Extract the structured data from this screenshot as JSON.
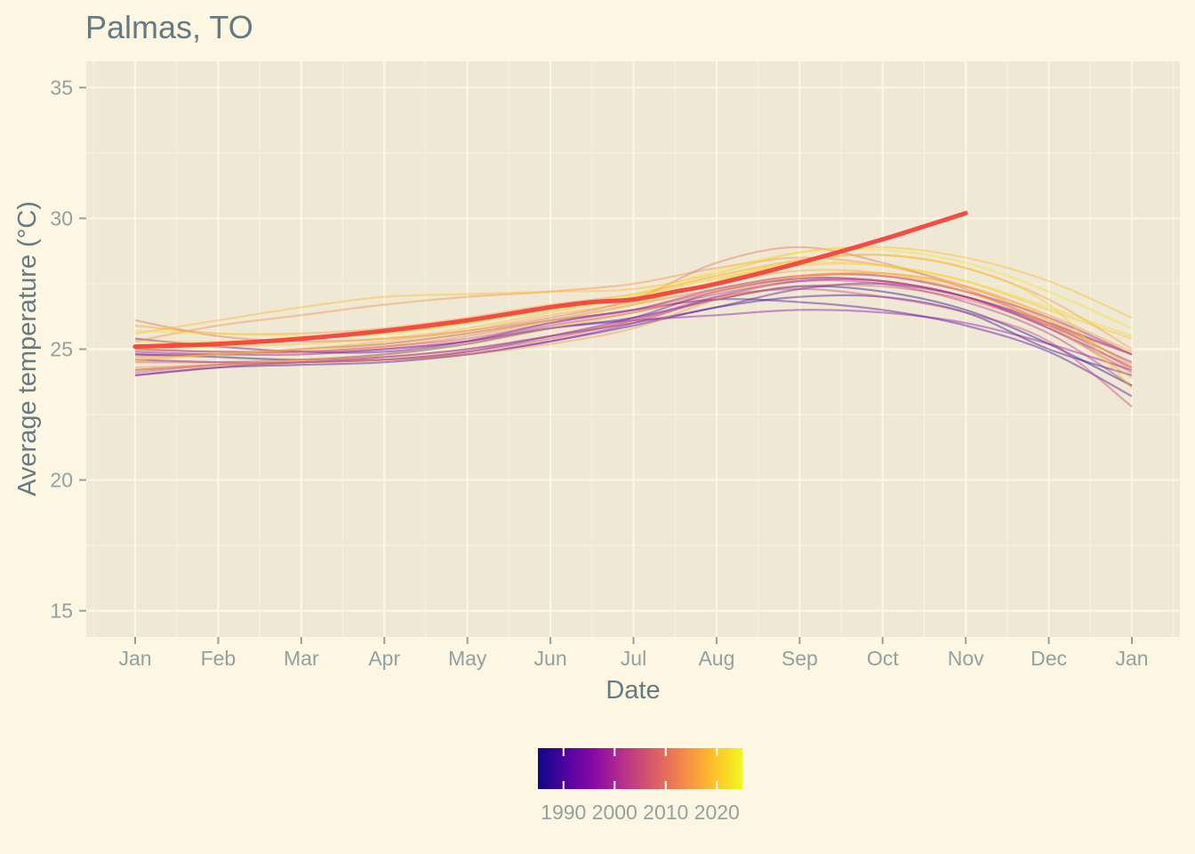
{
  "chart_data": {
    "type": "line",
    "title": "Palmas, TO",
    "xlabel": "Date",
    "ylabel": "Average temperature (°C)",
    "ylim": [
      14,
      36
    ],
    "yticks": [
      15,
      20,
      25,
      30,
      35
    ],
    "x_tick_labels": [
      "Jan",
      "Feb",
      "Mar",
      "Apr",
      "May",
      "Jun",
      "Jul",
      "Aug",
      "Sep",
      "Oct",
      "Nov",
      "Dec",
      "Jan"
    ],
    "grid": true,
    "legend": {
      "position": "bottom",
      "type": "colorbar",
      "colormap": "plasma",
      "range": [
        1985,
        2025
      ],
      "tick_labels": [
        "1990",
        "2000",
        "2010",
        "2020"
      ],
      "tick_values": [
        1990,
        2000,
        2010,
        2020
      ]
    },
    "colors": {
      "background": "#fdf6e3",
      "panel": "#eee8d5",
      "grid": "#fdf6e3",
      "highlight": "#f5423b"
    },
    "highlight_series": {
      "year": 2024,
      "color": "#f5423b",
      "x_months": [
        0,
        1,
        2,
        3,
        4,
        5,
        5.5,
        6,
        6.5,
        7,
        8,
        9,
        10
      ],
      "values": [
        25.1,
        25.2,
        25.4,
        25.7,
        26.1,
        26.6,
        26.8,
        26.9,
        27.2,
        27.5,
        28.3,
        29.2,
        30.2
      ]
    },
    "series": [
      {
        "year": 1986,
        "values": [
          24.8,
          24.7,
          24.6,
          24.8,
          25.2,
          25.8,
          26.2,
          26.9,
          27.4,
          27.2,
          26.5,
          25.2,
          23.6
        ]
      },
      {
        "year": 1988,
        "values": [
          24.0,
          24.3,
          24.4,
          24.5,
          24.8,
          25.3,
          25.9,
          26.6,
          27.0,
          27.0,
          26.4,
          25.0,
          24.0
        ]
      },
      {
        "year": 1990,
        "values": [
          25.4,
          25.1,
          24.9,
          24.9,
          25.3,
          26.0,
          26.5,
          26.9,
          26.8,
          26.5,
          25.9,
          24.9,
          23.2
        ]
      },
      {
        "year": 1992,
        "values": [
          24.6,
          24.5,
          24.5,
          24.7,
          25.0,
          25.5,
          26.0,
          26.6,
          27.3,
          27.5,
          27.0,
          26.0,
          24.8
        ]
      },
      {
        "year": 1994,
        "values": [
          24.2,
          24.4,
          24.5,
          24.6,
          24.9,
          25.5,
          26.2,
          27.2,
          27.7,
          27.6,
          27.0,
          25.8,
          24.3
        ]
      },
      {
        "year": 1996,
        "values": [
          24.9,
          24.8,
          24.8,
          25.0,
          25.3,
          25.8,
          26.1,
          26.3,
          26.5,
          26.4,
          26.0,
          25.2,
          24.2
        ]
      },
      {
        "year": 1998,
        "values": [
          24.8,
          24.8,
          25.0,
          25.2,
          25.6,
          26.1,
          26.5,
          27.3,
          27.8,
          27.8,
          27.2,
          26.2,
          24.8
        ]
      },
      {
        "year": 2000,
        "values": [
          24.0,
          24.3,
          24.5,
          24.6,
          24.8,
          25.3,
          26.0,
          27.0,
          27.6,
          27.6,
          27.0,
          25.9,
          24.5
        ]
      },
      {
        "year": 2002,
        "values": [
          25.0,
          24.9,
          24.9,
          25.0,
          25.3,
          25.9,
          26.4,
          27.1,
          27.6,
          27.5,
          26.8,
          25.6,
          23.6
        ]
      },
      {
        "year": 2004,
        "values": [
          24.1,
          24.4,
          24.5,
          24.6,
          24.9,
          25.4,
          26.1,
          27.0,
          27.3,
          27.0,
          26.4,
          25.3,
          22.8
        ]
      },
      {
        "year": 2006,
        "values": [
          25.0,
          24.9,
          24.9,
          25.1,
          25.4,
          26.0,
          26.5,
          27.2,
          27.7,
          27.6,
          27.0,
          25.8,
          24.1
        ]
      },
      {
        "year": 2008,
        "values": [
          24.5,
          24.5,
          24.6,
          24.7,
          25.0,
          25.5,
          26.1,
          26.9,
          27.4,
          27.4,
          26.9,
          25.9,
          24.8
        ]
      },
      {
        "year": 2010,
        "values": [
          26.1,
          25.5,
          25.3,
          25.4,
          25.7,
          26.2,
          26.9,
          28.3,
          28.9,
          28.3,
          27.3,
          26.0,
          24.8
        ]
      },
      {
        "year": 2012,
        "values": [
          24.7,
          24.8,
          24.9,
          25.1,
          25.5,
          26.1,
          26.7,
          27.3,
          27.8,
          27.8,
          27.2,
          26.0,
          24.2
        ]
      },
      {
        "year": 2014,
        "values": [
          25.3,
          25.9,
          26.3,
          26.7,
          27.0,
          27.2,
          27.5,
          28.1,
          28.5,
          28.2,
          27.4,
          26.1,
          24.4
        ]
      },
      {
        "year": 2015,
        "values": [
          24.3,
          24.4,
          24.5,
          24.6,
          24.8,
          25.2,
          25.8,
          26.9,
          27.7,
          27.9,
          27.4,
          26.3,
          24.9
        ]
      },
      {
        "year": 2016,
        "values": [
          25.9,
          25.6,
          25.6,
          25.8,
          26.2,
          26.7,
          27.1,
          27.8,
          28.4,
          28.6,
          28.1,
          26.9,
          25.0
        ]
      },
      {
        "year": 2017,
        "values": [
          24.6,
          24.8,
          25.0,
          25.3,
          25.7,
          26.3,
          26.8,
          27.5,
          28.0,
          27.9,
          27.2,
          25.9,
          23.9
        ]
      },
      {
        "year": 2018,
        "values": [
          24.2,
          24.4,
          24.6,
          24.8,
          25.2,
          25.8,
          26.4,
          27.2,
          27.8,
          27.9,
          27.4,
          26.2,
          24.3
        ]
      },
      {
        "year": 2019,
        "values": [
          25.6,
          26.1,
          26.6,
          27.0,
          27.1,
          27.2,
          27.3,
          27.9,
          28.7,
          28.9,
          28.5,
          27.6,
          26.2
        ]
      },
      {
        "year": 2020,
        "values": [
          25.0,
          25.1,
          25.2,
          25.4,
          25.8,
          26.4,
          27.0,
          27.7,
          28.2,
          28.2,
          27.6,
          26.5,
          25.4
        ]
      },
      {
        "year": 2021,
        "values": [
          24.6,
          24.8,
          25.0,
          25.2,
          25.6,
          26.1,
          26.7,
          27.6,
          28.4,
          28.6,
          28.1,
          26.7,
          23.5
        ]
      },
      {
        "year": 2022,
        "values": [
          25.3,
          25.3,
          25.4,
          25.6,
          26.0,
          26.5,
          27.0,
          27.8,
          28.3,
          28.2,
          27.6,
          26.6,
          25.5
        ]
      },
      {
        "year": 2023,
        "values": [
          25.7,
          25.6,
          25.5,
          25.6,
          26.0,
          26.6,
          27.1,
          28.0,
          28.7,
          28.8,
          28.3,
          27.2,
          25.8
        ]
      }
    ]
  }
}
